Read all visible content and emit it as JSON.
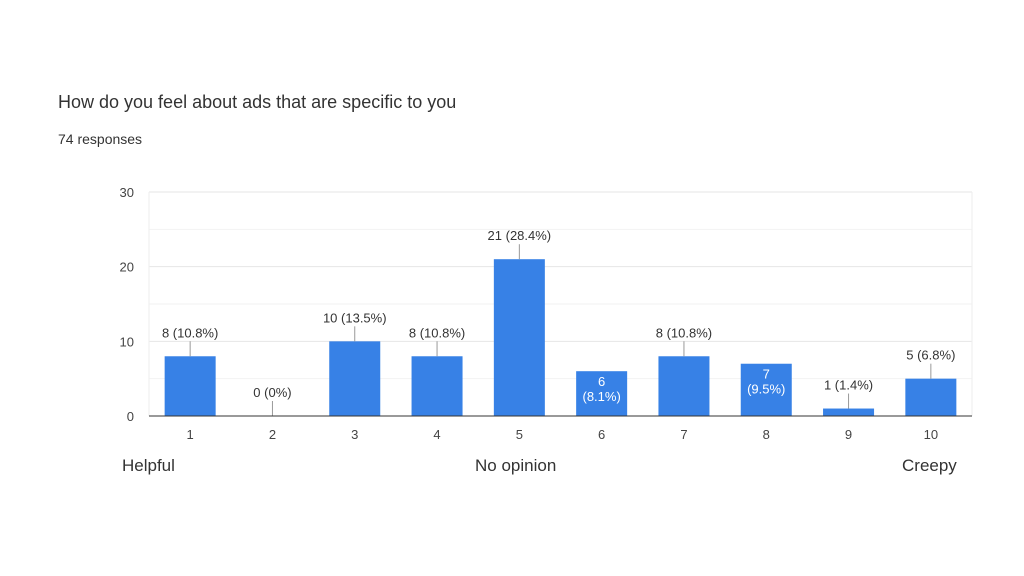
{
  "chart_data": {
    "type": "bar",
    "title": "How do you feel about ads that are specific to you",
    "subtitle": "74 responses",
    "categories": [
      "1",
      "2",
      "3",
      "4",
      "5",
      "6",
      "7",
      "8",
      "9",
      "10"
    ],
    "values": [
      8,
      0,
      10,
      8,
      21,
      6,
      8,
      7,
      1,
      5
    ],
    "data_labels": [
      "8 (10.8%)",
      "0 (0%)",
      "10 (13.5%)",
      "8 (10.8%)",
      "21 (28.4%)",
      "6 (8.1%)",
      "8 (10.8%)",
      "7 (9.5%)",
      "1 (1.4%)",
      "5 (6.8%)"
    ],
    "ylim": [
      0,
      30
    ],
    "yticks": [
      0,
      10,
      20,
      30
    ],
    "grid": true,
    "bar_color": "#3781e6",
    "scale_labels": {
      "left": "Helpful",
      "middle": "No opinion",
      "right": "Creepy"
    }
  }
}
